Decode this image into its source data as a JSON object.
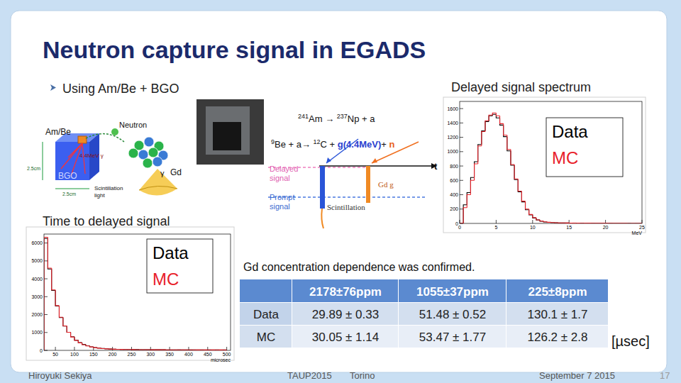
{
  "slide": {
    "title": "Neutron capture signal in EGADS",
    "bullet": "Using Am/Be + BGO",
    "footer": {
      "author": "Hiroyuki Sekiya",
      "conference": "TAUP2015",
      "city": "Torino",
      "date": "September 7 2015",
      "page": "17"
    }
  },
  "source_diagram": {
    "labels": {
      "source": "Am/Be",
      "neutron": "Neutron",
      "gamma_44": "4.4MeV γ",
      "gd": "Gd",
      "gamma": "γ",
      "bgo": "BGO",
      "size_side": "2.5cm",
      "size_bottom": "2.5cm",
      "light_1": "Scintillation",
      "light_2": "light"
    }
  },
  "decay_diagram": {
    "equation_1": [
      {
        "t": "241",
        "sup": true
      },
      {
        "t": "Am → "
      },
      {
        "t": "237",
        "sup": true
      },
      {
        "t": "Np + a"
      }
    ],
    "equation_2": [
      {
        "t": "9",
        "sup": true
      },
      {
        "t": "Be + a→ "
      },
      {
        "t": "12",
        "sup": true
      },
      {
        "t": "C + "
      },
      {
        "t": "g(4.4MeV)",
        "color": "#2a3fd0"
      },
      {
        "t": "+ "
      },
      {
        "t": "n",
        "color": "#e8601c"
      }
    ],
    "delayed_1": "Delayed",
    "delayed_2": "signal",
    "prompt_1": "Prompt",
    "prompt_2": "signal",
    "scintillation": "Scintillation",
    "gd_gamma": "Gd g",
    "time_axis": "t"
  },
  "table_note": "Gd concentration dependence was confirmed.",
  "table": {
    "header": [
      "2178±76ppm",
      "1055±37ppm",
      "225±8ppm"
    ],
    "rows": [
      {
        "label": "Data",
        "cells": [
          "29.89 ± 0.33",
          "51.48 ± 0.52",
          "130.1 ± 1.7"
        ]
      },
      {
        "label": "MC",
        "cells": [
          "30.05 ± 1.14",
          "53.47 ± 1.77",
          "126.2 ± 2.8"
        ]
      }
    ],
    "unit": "[µsec]"
  },
  "chart_data": [
    {
      "type": "histogram",
      "title": "Delayed signal spectrum",
      "x_label": "MeV",
      "bins": [
        0,
        0.5,
        1,
        1.5,
        2,
        2.5,
        3,
        3.5,
        4,
        4.5,
        5,
        5.5,
        6,
        6.5,
        7,
        7.5,
        8,
        8.5,
        9,
        9.5,
        10,
        10.5,
        11,
        11.5,
        12,
        12.5,
        13,
        13.5,
        14,
        14.5,
        15,
        15.5,
        16,
        16.5,
        17,
        17.5,
        18,
        18.5,
        19,
        19.5,
        20,
        20.5,
        21,
        21.5,
        22,
        22.5,
        23,
        23.5,
        24,
        24.5,
        25
      ],
      "series": [
        {
          "name": "Data",
          "color": "#000000",
          "values": [
            0,
            260,
            430,
            640,
            860,
            1100,
            1290,
            1420,
            1500,
            1520,
            1470,
            1370,
            1210,
            1010,
            810,
            610,
            440,
            300,
            190,
            120,
            75,
            48,
            30,
            20,
            15,
            12,
            10,
            8,
            7,
            6,
            5,
            5,
            4,
            4,
            3,
            3,
            3,
            2,
            2,
            2,
            2,
            1,
            1,
            1,
            1,
            1,
            1,
            0,
            0,
            0
          ]
        },
        {
          "name": "MC",
          "color": "#e8222a",
          "values": [
            0,
            220,
            400,
            600,
            830,
            1080,
            1280,
            1430,
            1510,
            1540,
            1500,
            1390,
            1230,
            1030,
            820,
            620,
            450,
            310,
            200,
            125,
            80,
            50,
            32,
            22,
            16,
            12,
            10,
            8,
            7,
            6,
            5,
            4,
            4,
            3,
            3,
            3,
            2,
            2,
            2,
            2,
            1,
            1,
            1,
            1,
            1,
            1,
            0,
            0,
            0,
            0
          ]
        }
      ],
      "xlim": [
        0,
        25
      ],
      "ylim": [
        0,
        1700
      ],
      "xticks": [
        0,
        5,
        10,
        15,
        20,
        25
      ],
      "yticks": [
        0,
        200,
        400,
        600,
        800,
        1000,
        1200,
        1400,
        1600
      ],
      "grid": false,
      "legend": "top-right"
    },
    {
      "type": "histogram",
      "title": "Time to delayed signal",
      "x_label": "microsec",
      "bins": [
        20,
        30,
        40,
        50,
        60,
        70,
        80,
        90,
        100,
        110,
        120,
        130,
        140,
        150,
        160,
        170,
        180,
        190,
        200,
        210,
        220,
        230,
        240,
        250,
        260,
        270,
        280,
        290,
        300,
        310,
        320,
        330,
        340,
        350,
        360,
        370,
        380,
        390,
        400,
        410,
        420,
        430,
        440,
        450,
        460,
        470,
        480,
        490,
        500
      ],
      "series": [
        {
          "name": "Data",
          "color": "#000000",
          "values": [
            6250,
            4550,
            3350,
            2480,
            1840,
            1360,
            1010,
            760,
            570,
            430,
            330,
            255,
            200,
            160,
            128,
            105,
            88,
            76,
            67,
            60,
            55,
            51,
            48,
            45,
            43,
            41,
            39,
            37,
            36,
            35,
            34,
            33,
            32,
            31,
            30,
            30,
            29,
            28,
            28,
            27,
            27,
            26,
            26,
            25,
            25,
            24,
            24,
            23
          ]
        },
        {
          "name": "MC",
          "color": "#e8222a",
          "values": [
            6320,
            4600,
            3380,
            2500,
            1850,
            1370,
            1010,
            750,
            560,
            420,
            320,
            248,
            195,
            155,
            125,
            102,
            86,
            74,
            66,
            59,
            54,
            50,
            47,
            44,
            42,
            40,
            38,
            37,
            36,
            35,
            34,
            33,
            32,
            31,
            30,
            29,
            29,
            28,
            27,
            27,
            26,
            26,
            25,
            25,
            24,
            24,
            23,
            23
          ]
        }
      ],
      "xlim": [
        20,
        510
      ],
      "ylim": [
        0,
        6500
      ],
      "xticks": [
        50,
        100,
        150,
        200,
        250,
        300,
        350,
        400,
        450,
        500
      ],
      "yticks": [
        0,
        1000,
        2000,
        3000,
        4000,
        5000,
        6000
      ],
      "grid": false,
      "legend": "top-right"
    }
  ]
}
